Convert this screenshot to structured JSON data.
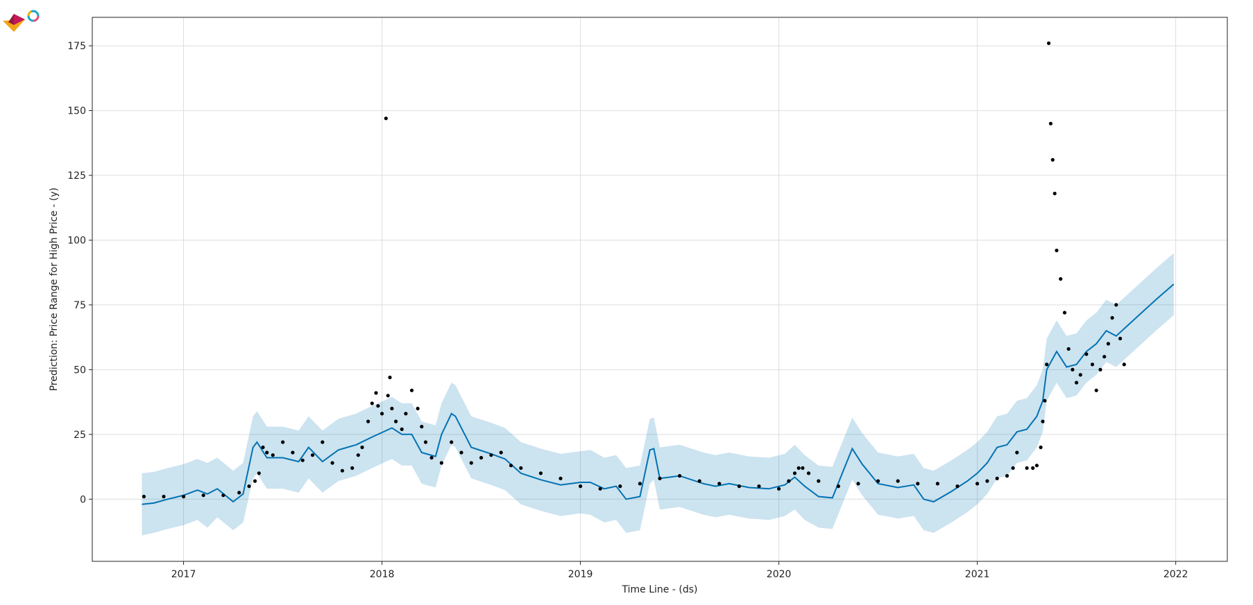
{
  "chart_data": {
    "type": "line",
    "title": "",
    "xlabel": "Time Line - (ds)",
    "ylabel": "Prediction: Price Range for High Price - (y)",
    "xlim": [
      2016.54,
      2022.26
    ],
    "ylim": [
      -24,
      186
    ],
    "x_ticks": [
      2017,
      2018,
      2019,
      2020,
      2021,
      2022
    ],
    "x_tick_labels": [
      "2017",
      "2018",
      "2019",
      "2020",
      "2021",
      "2022"
    ],
    "y_ticks": [
      0,
      25,
      50,
      75,
      100,
      125,
      150,
      175
    ],
    "y_tick_labels": [
      "0",
      "25",
      "50",
      "75",
      "100",
      "125",
      "150",
      "175"
    ],
    "grid": true,
    "colors": {
      "forecast": "#0072B2",
      "interval": "#0072B2",
      "observed": "#000000"
    },
    "series": [
      {
        "kind": "forecast",
        "x": [
          2016.79,
          2016.85,
          2016.92,
          2017.0,
          2017.07,
          2017.12,
          2017.17,
          2017.25,
          2017.3,
          2017.35,
          2017.37,
          2017.42,
          2017.5,
          2017.58,
          2017.63,
          2017.7,
          2017.78,
          2017.87,
          2017.95,
          2018.05,
          2018.1,
          2018.15,
          2018.2,
          2018.27,
          2018.3,
          2018.35,
          2018.37,
          2018.45,
          2018.55,
          2018.62,
          2018.7,
          2018.8,
          2018.9,
          2019.0,
          2019.05,
          2019.12,
          2019.18,
          2019.23,
          2019.3,
          2019.35,
          2019.37,
          2019.4,
          2019.5,
          2019.62,
          2019.68,
          2019.75,
          2019.85,
          2019.95,
          2020.03,
          2020.08,
          2020.13,
          2020.2,
          2020.27,
          2020.33,
          2020.37,
          2020.42,
          2020.5,
          2020.6,
          2020.68,
          2020.73,
          2020.78,
          2020.87,
          2020.95,
          2021.0,
          2021.05,
          2021.1,
          2021.15,
          2021.2,
          2021.25,
          2021.3,
          2021.33,
          2021.35,
          2021.4,
          2021.45,
          2021.5,
          2021.55,
          2021.6,
          2021.65,
          2021.7,
          2021.8,
          2021.9,
          2021.99
        ],
        "y": [
          -2,
          -1.5,
          0,
          1.5,
          3.5,
          2,
          4,
          -1,
          2,
          20,
          22,
          16,
          16,
          14.5,
          20,
          14.5,
          19,
          21,
          24,
          27.5,
          25,
          25,
          18,
          16.5,
          25,
          33,
          32,
          20,
          17.5,
          15.5,
          10,
          7.5,
          5.5,
          6.5,
          6.5,
          4,
          5,
          0,
          1,
          19,
          19.5,
          8,
          9,
          6,
          5,
          6,
          4.5,
          4,
          5.5,
          8.5,
          5,
          1,
          0.5,
          12,
          19.5,
          13.5,
          6,
          4.5,
          5.5,
          0,
          -1,
          3,
          7,
          10,
          14,
          20,
          21,
          26,
          27,
          32,
          38,
          50,
          57,
          51,
          52,
          57,
          60,
          65,
          63,
          70,
          77,
          83
        ]
      },
      {
        "kind": "uncertainty-band",
        "x": [
          2016.79,
          2016.85,
          2016.92,
          2017.0,
          2017.07,
          2017.12,
          2017.17,
          2017.25,
          2017.3,
          2017.35,
          2017.37,
          2017.42,
          2017.5,
          2017.58,
          2017.63,
          2017.7,
          2017.78,
          2017.87,
          2017.95,
          2018.05,
          2018.1,
          2018.15,
          2018.2,
          2018.27,
          2018.3,
          2018.35,
          2018.37,
          2018.45,
          2018.55,
          2018.62,
          2018.7,
          2018.8,
          2018.9,
          2019.0,
          2019.05,
          2019.12,
          2019.18,
          2019.23,
          2019.3,
          2019.35,
          2019.37,
          2019.4,
          2019.5,
          2019.62,
          2019.68,
          2019.75,
          2019.85,
          2019.95,
          2020.03,
          2020.08,
          2020.13,
          2020.2,
          2020.27,
          2020.33,
          2020.37,
          2020.42,
          2020.5,
          2020.6,
          2020.68,
          2020.73,
          2020.78,
          2020.87,
          2020.95,
          2021.0,
          2021.05,
          2021.1,
          2021.15,
          2021.2,
          2021.25,
          2021.3,
          2021.33,
          2021.35,
          2021.4,
          2021.45,
          2021.5,
          2021.55,
          2021.6,
          2021.65,
          2021.7,
          2021.8,
          2021.9,
          2021.99
        ],
        "y_lower": [
          -14,
          -13,
          -11.5,
          -10,
          -8,
          -11,
          -7,
          -12,
          -9,
          8,
          10,
          4,
          4,
          2.5,
          8,
          2.5,
          7,
          9,
          12,
          15.5,
          13,
          13,
          6,
          4.5,
          13,
          21,
          20,
          8,
          5.5,
          3.5,
          -2,
          -4.5,
          -6.5,
          -5.5,
          -6,
          -9,
          -8,
          -13,
          -12,
          6,
          7.5,
          -4,
          -3,
          -6,
          -7,
          -6,
          -7.5,
          -8,
          -6.5,
          -4,
          -8,
          -11,
          -11.5,
          0,
          7.5,
          1.5,
          -6,
          -7.5,
          -6.5,
          -12,
          -13,
          -9,
          -5,
          -2,
          2,
          8,
          9,
          14,
          15,
          20,
          26,
          38,
          45,
          39,
          40,
          45,
          48,
          53,
          51,
          58,
          65,
          71
        ],
        "y_upper": [
          10,
          10.5,
          12,
          13.5,
          15.5,
          14,
          16,
          11,
          14,
          32,
          34,
          28,
          28,
          26.5,
          32,
          26.5,
          31,
          33,
          36,
          39.5,
          37,
          37,
          30,
          28.5,
          37,
          45,
          44,
          32,
          29.5,
          27.5,
          22,
          19.5,
          17.5,
          18.5,
          19,
          16,
          17,
          12,
          13,
          31,
          31.5,
          20,
          21,
          18,
          17,
          18,
          16.5,
          16,
          17.5,
          21,
          17,
          13,
          12.5,
          24,
          31.5,
          25.5,
          18,
          16.5,
          17.5,
          12,
          11,
          15,
          19,
          22,
          26,
          32,
          33,
          38,
          39,
          44,
          50,
          62,
          69,
          63,
          64,
          69,
          72,
          77,
          75,
          82,
          89,
          95
        ]
      },
      {
        "kind": "observed-points",
        "x": [
          2016.8,
          2016.9,
          2017.0,
          2017.1,
          2017.2,
          2017.28,
          2017.33,
          2017.36,
          2017.38,
          2017.4,
          2017.42,
          2017.45,
          2017.5,
          2017.55,
          2017.6,
          2017.65,
          2017.7,
          2017.75,
          2017.8,
          2017.85,
          2017.88,
          2017.9,
          2017.93,
          2017.95,
          2017.97,
          2017.98,
          2018.0,
          2018.02,
          2018.03,
          2018.04,
          2018.05,
          2018.07,
          2018.1,
          2018.12,
          2018.15,
          2018.18,
          2018.2,
          2018.22,
          2018.25,
          2018.3,
          2018.35,
          2018.4,
          2018.45,
          2018.5,
          2018.55,
          2018.6,
          2018.65,
          2018.7,
          2018.8,
          2018.9,
          2019.0,
          2019.1,
          2019.2,
          2019.3,
          2019.4,
          2019.5,
          2019.6,
          2019.7,
          2019.8,
          2019.9,
          2020.0,
          2020.05,
          2020.08,
          2020.1,
          2020.12,
          2020.15,
          2020.2,
          2020.3,
          2020.4,
          2020.5,
          2020.6,
          2020.7,
          2020.8,
          2020.9,
          2021.0,
          2021.05,
          2021.1,
          2021.15,
          2021.18,
          2021.2,
          2021.25,
          2021.28,
          2021.3,
          2021.32,
          2021.33,
          2021.34,
          2021.35,
          2021.36,
          2021.37,
          2021.38,
          2021.39,
          2021.4,
          2021.42,
          2021.44,
          2021.46,
          2021.48,
          2021.5,
          2021.52,
          2021.55,
          2021.58,
          2021.6,
          2021.62,
          2021.64,
          2021.66,
          2021.68,
          2021.7,
          2021.72,
          2021.74
        ],
        "y": [
          1,
          1,
          1,
          1.5,
          1.5,
          2.5,
          5,
          7,
          10,
          20,
          18,
          17,
          22,
          18,
          15,
          17,
          22,
          14,
          11,
          12,
          17,
          20,
          30,
          37,
          41,
          36,
          33,
          147,
          40,
          47,
          35,
          30,
          27,
          33,
          42,
          35,
          28,
          22,
          16,
          14,
          22,
          18,
          14,
          16,
          17,
          18,
          13,
          12,
          10,
          8,
          5,
          4,
          5,
          6,
          8,
          9,
          7,
          6,
          5,
          5,
          4,
          7,
          10,
          12,
          12,
          10,
          7,
          5,
          6,
          7,
          7,
          6,
          6,
          5,
          6,
          7,
          8,
          9,
          12,
          18,
          12,
          12,
          13,
          20,
          30,
          38,
          52,
          176,
          145,
          131,
          118,
          96,
          85,
          72,
          58,
          50,
          45,
          48,
          56,
          52,
          42,
          50,
          55,
          60,
          70,
          75,
          62,
          52
        ]
      }
    ]
  }
}
